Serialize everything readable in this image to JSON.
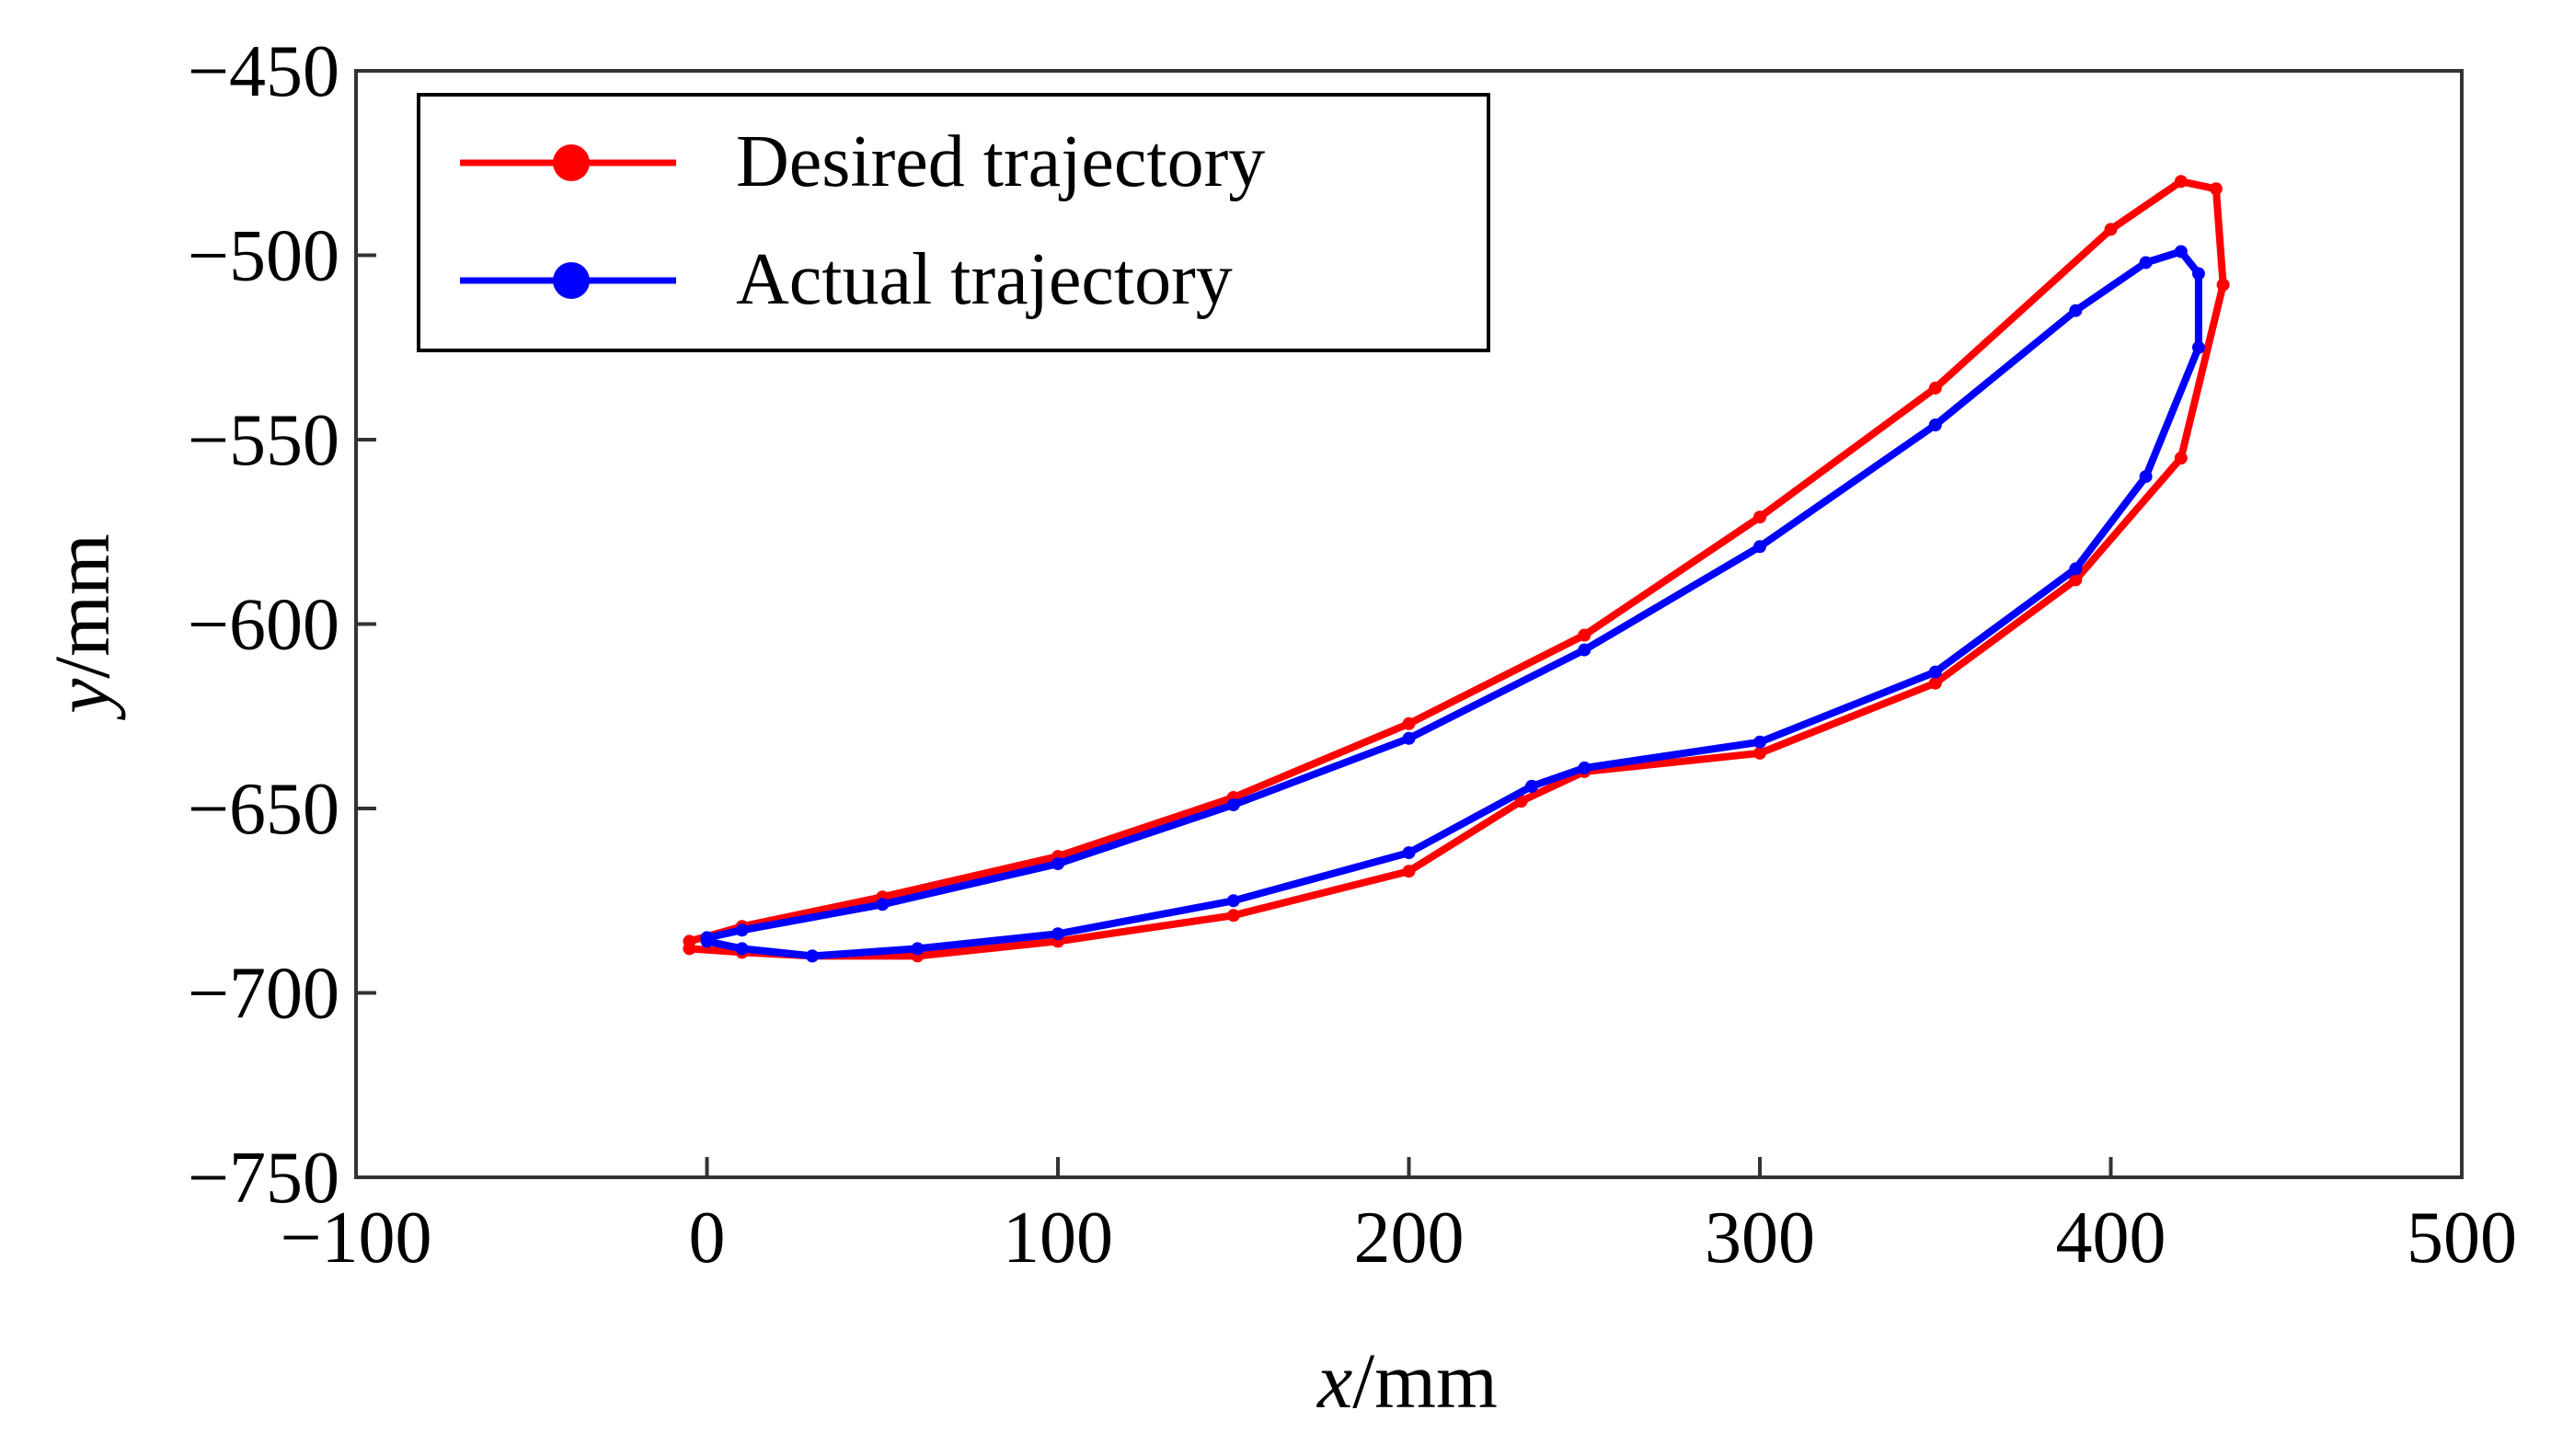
{
  "chart_data": {
    "type": "line",
    "title": "",
    "xlabel_var": "x",
    "xlabel_unit": "/mm",
    "ylabel_var": "y",
    "ylabel_unit": "/mm",
    "xlim": [
      -100,
      500
    ],
    "ylim": [
      -750,
      -450
    ],
    "xticks": [
      -100,
      0,
      100,
      200,
      300,
      400,
      500
    ],
    "yticks": [
      -450,
      -500,
      -550,
      -600,
      -650,
      -700,
      -750
    ],
    "xtick_labels": [
      "−100",
      "0",
      "100",
      "200",
      "300",
      "400",
      "500"
    ],
    "ytick_labels": [
      "−450",
      "−500",
      "−550",
      "−600",
      "−650",
      "−700",
      "−750"
    ],
    "legend_position": "top-left",
    "series": [
      {
        "name": "Desired trajectory",
        "color": "#ff0000",
        "x": [
          232,
          200,
          150,
          100,
          60,
          30,
          10,
          -5,
          -5,
          10,
          50,
          100,
          150,
          200,
          250,
          300,
          350,
          400,
          420,
          430,
          432,
          420,
          390,
          350,
          300,
          250,
          232
        ],
        "y": [
          -648,
          -667,
          -679,
          -686,
          -690,
          -690,
          -689,
          -688,
          -686,
          -682,
          -674,
          -663,
          -647,
          -627,
          -603,
          -571,
          -536,
          -493,
          -480,
          -482,
          -508,
          -555,
          -588,
          -616,
          -635,
          -640,
          -648
        ]
      },
      {
        "name": "Actual trajectory",
        "color": "#0000ff",
        "x": [
          235,
          200,
          150,
          100,
          60,
          30,
          10,
          0,
          0,
          10,
          50,
          100,
          150,
          200,
          250,
          300,
          350,
          390,
          410,
          420,
          425,
          425,
          410,
          390,
          350,
          300,
          250,
          235
        ],
        "y": [
          -644,
          -662,
          -675,
          -684,
          -688,
          -690,
          -688,
          -686,
          -685,
          -683,
          -676,
          -665,
          -649,
          -631,
          -607,
          -579,
          -546,
          -515,
          -502,
          -499,
          -505,
          -525,
          -560,
          -585,
          -613,
          -632,
          -639,
          -644
        ]
      }
    ]
  }
}
